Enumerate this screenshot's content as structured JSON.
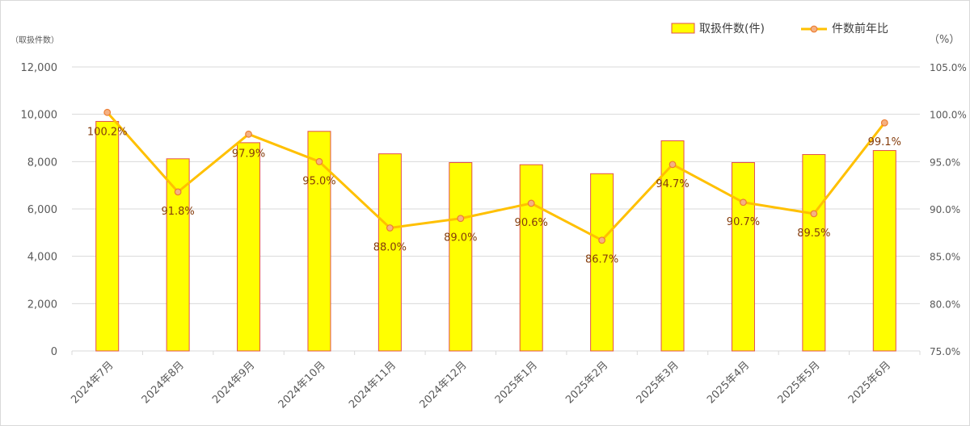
{
  "chart_data": {
    "type": "bar",
    "categories": [
      "2024年7月",
      "2024年8月",
      "2024年9月",
      "2024年10月",
      "2024年11月",
      "2024年12月",
      "2025年1月",
      "2025年2月",
      "2025年3月",
      "2025年4月",
      "2025年5月",
      "2025年6月"
    ],
    "series": [
      {
        "name": "取扱件数(件)",
        "type": "bar",
        "axis": "left",
        "values": [
          9700,
          8120,
          8800,
          9280,
          8330,
          7960,
          7870,
          7490,
          8880,
          7960,
          8300,
          8470
        ]
      },
      {
        "name": "件数前年比",
        "type": "line",
        "axis": "right",
        "values": [
          100.2,
          91.8,
          97.9,
          95.0,
          88.0,
          89.0,
          90.6,
          86.7,
          94.7,
          90.7,
          89.5,
          99.1
        ],
        "labels": [
          "100.2%",
          "91.8%",
          "97.9%",
          "95.0%",
          "88.0%",
          "89.0%",
          "90.6%",
          "86.7%",
          "94.7%",
          "90.7%",
          "89.5%",
          "99.1%"
        ]
      }
    ],
    "y_left": {
      "unit_label": "（取扱件数）",
      "ylim": [
        0,
        12000
      ],
      "ticks": [
        0,
        2000,
        4000,
        6000,
        8000,
        10000,
        12000
      ],
      "tick_labels": [
        "0",
        "2,000",
        "4,000",
        "6,000",
        "8,000",
        "10,000",
        "12,000"
      ]
    },
    "y_right": {
      "unit_label": "（%）",
      "ylim": [
        75,
        105
      ],
      "ticks": [
        75,
        80,
        85,
        90,
        95,
        100,
        105
      ],
      "tick_labels": [
        "75.0%",
        "80.0%",
        "85.0%",
        "90.0%",
        "95.0%",
        "100.0%",
        "105.0%"
      ]
    },
    "grid": true,
    "legend_position": "top-right",
    "colors": {
      "bar_fill": "#ffff00",
      "bar_stroke": "#e2504c",
      "line": "#ffc000",
      "marker_fill": "#f4b183",
      "marker_stroke": "#ed7d31",
      "data_label": "#843c0c",
      "grid": "#d9d9d9"
    }
  }
}
